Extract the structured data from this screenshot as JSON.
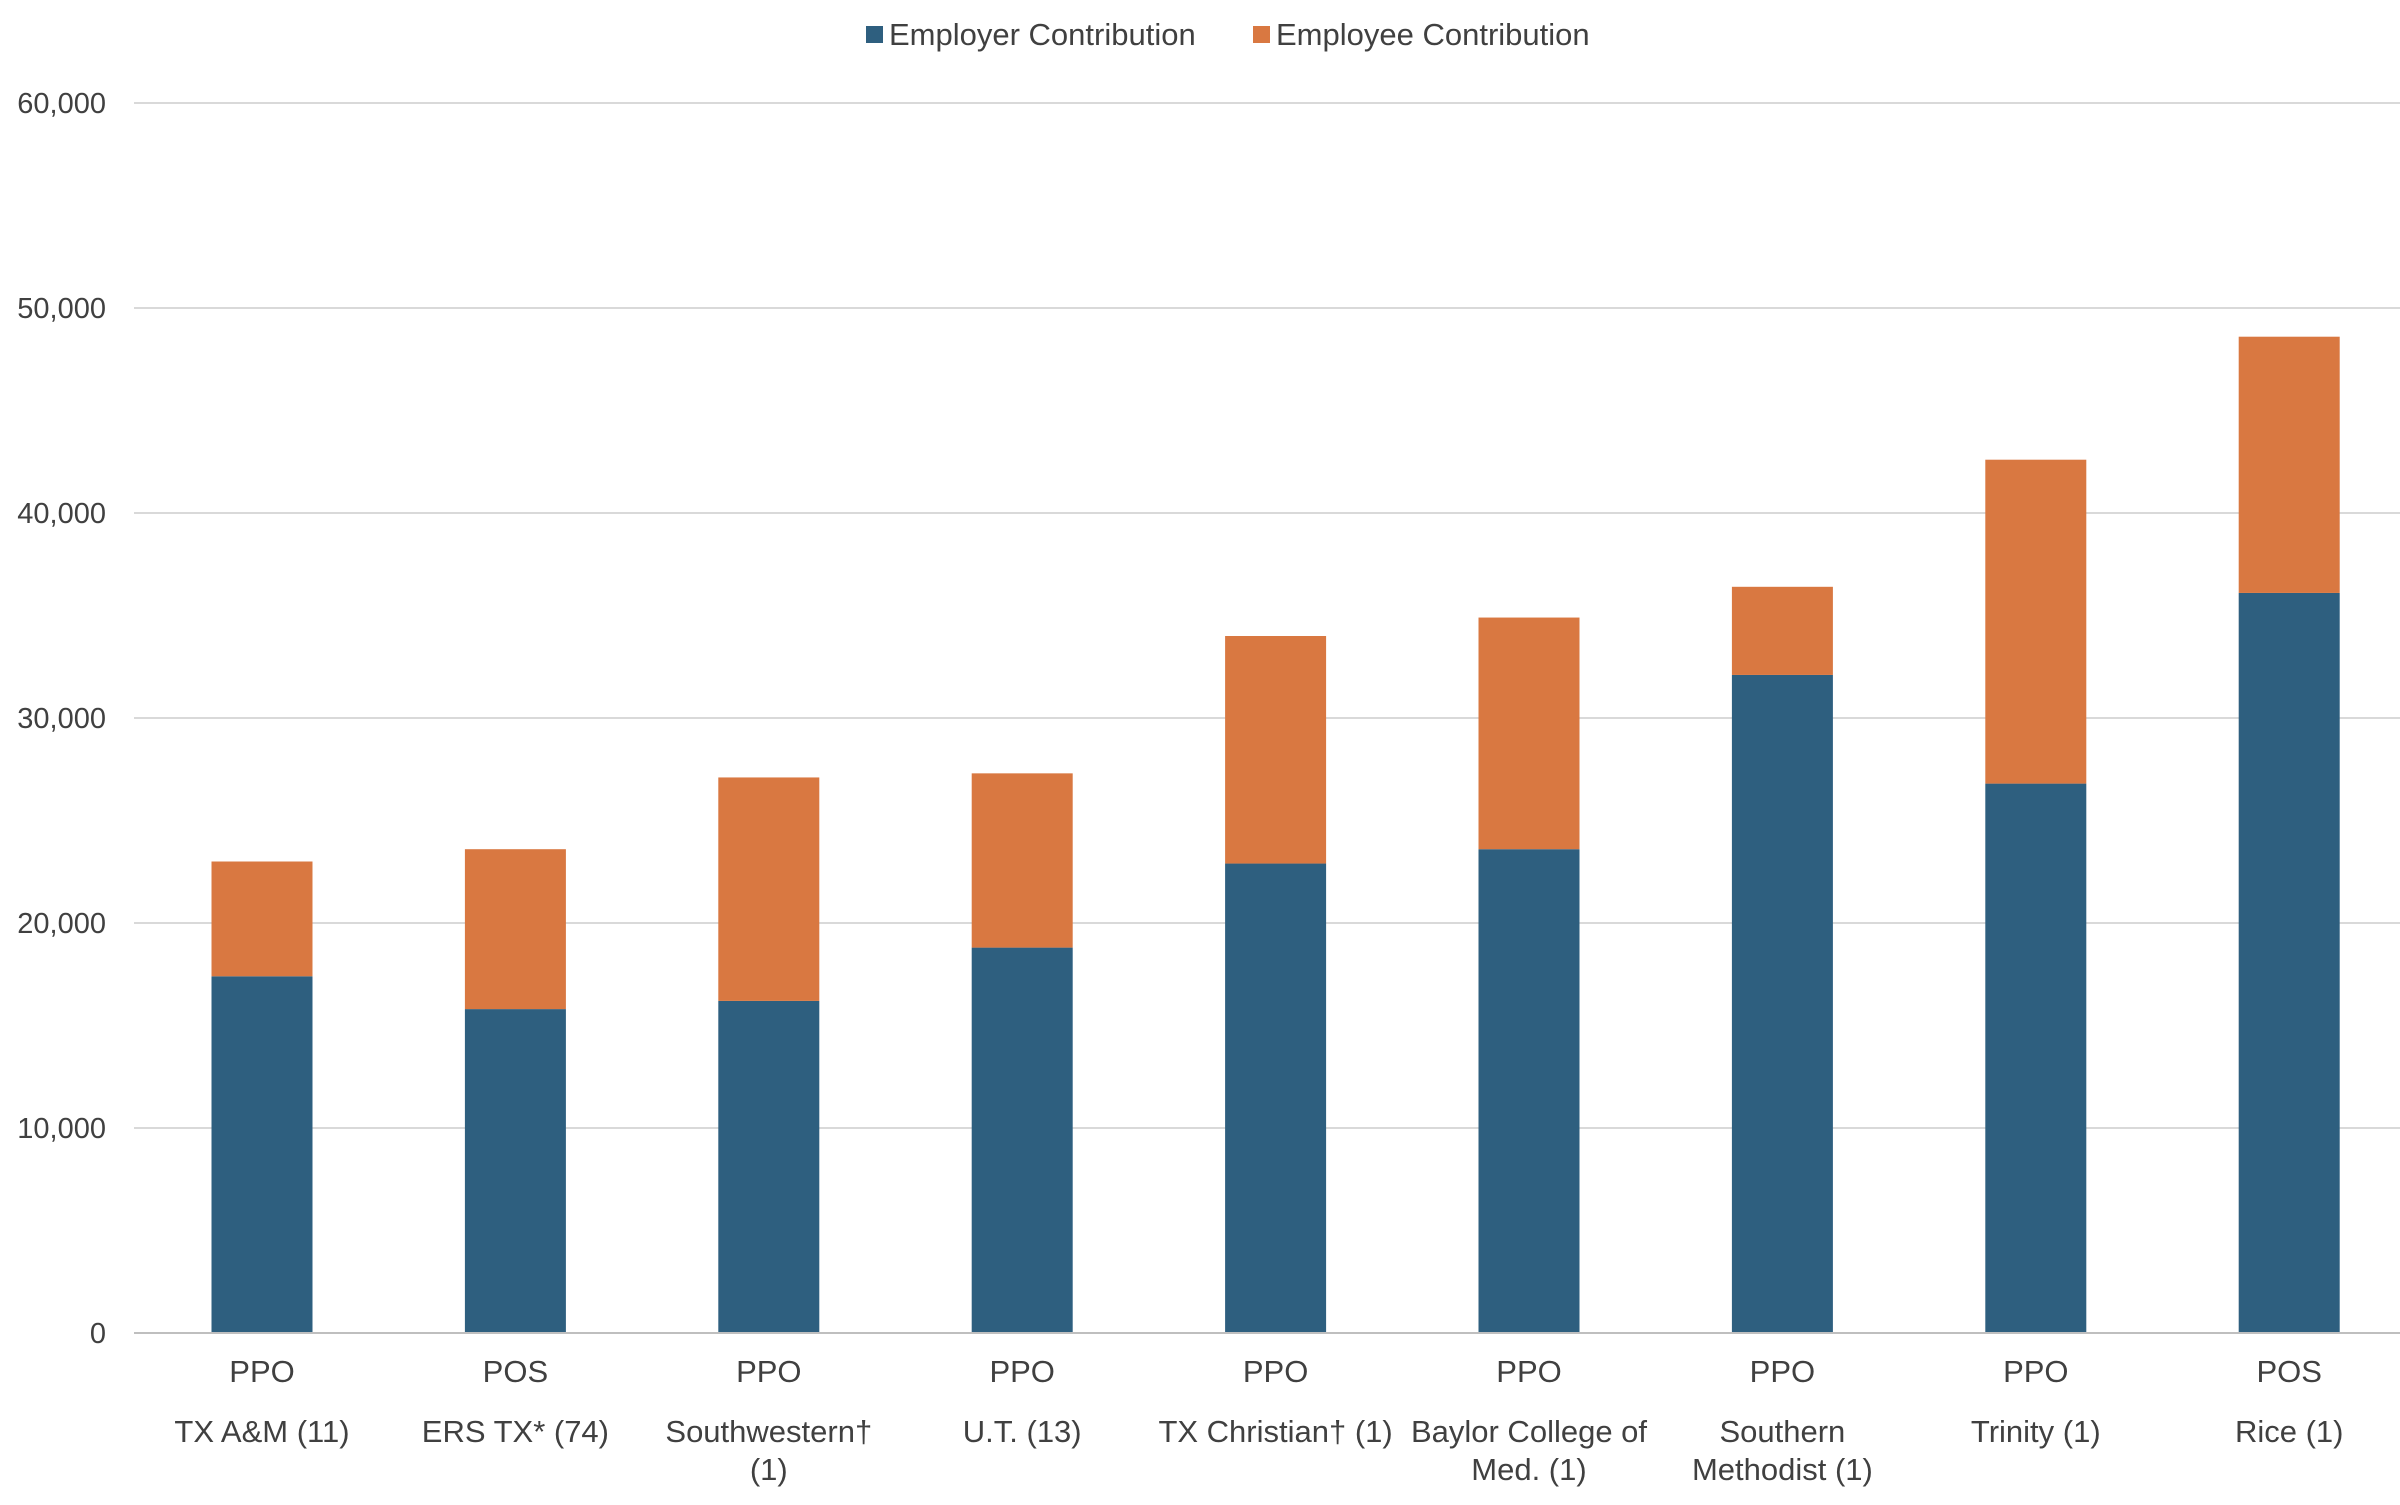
{
  "chart_data": {
    "type": "bar",
    "stacked": true,
    "categories": [
      {
        "sub": "PPO",
        "lines": [
          "TX A&M (11)"
        ]
      },
      {
        "sub": "POS",
        "lines": [
          "ERS TX* (74)"
        ]
      },
      {
        "sub": "PPO",
        "lines": [
          "Southwestern†",
          "(1)"
        ]
      },
      {
        "sub": "PPO",
        "lines": [
          "U.T. (13)"
        ]
      },
      {
        "sub": "PPO",
        "lines": [
          "TX Christian† (1)"
        ]
      },
      {
        "sub": "PPO",
        "lines": [
          "Baylor College of",
          "Med. (1)"
        ]
      },
      {
        "sub": "PPO",
        "lines": [
          "Southern",
          "Methodist (1)"
        ]
      },
      {
        "sub": "PPO",
        "lines": [
          "Trinity (1)"
        ]
      },
      {
        "sub": "POS",
        "lines": [
          "Rice (1)"
        ]
      }
    ],
    "series": [
      {
        "name": "Employer Contribution",
        "color": "#2e5f7f",
        "values": [
          17400,
          15800,
          16200,
          18800,
          22900,
          23600,
          32100,
          26800,
          36100
        ]
      },
      {
        "name": "Employee Contribution",
        "color": "#d97841",
        "values": [
          5600,
          7800,
          10900,
          8500,
          11100,
          11300,
          4300,
          15800,
          12500
        ]
      }
    ],
    "ylim": [
      0,
      60000
    ],
    "yticks": [
      0,
      10000,
      20000,
      30000,
      40000,
      50000,
      60000
    ],
    "ytick_labels": [
      "0",
      "10,000",
      "20,000",
      "30,000",
      "40,000",
      "50,000",
      "60,000"
    ],
    "grid": true,
    "legend_position": "top-center",
    "gridline_color": "#d9d9d9",
    "axis_color": "#bfbfbf"
  }
}
